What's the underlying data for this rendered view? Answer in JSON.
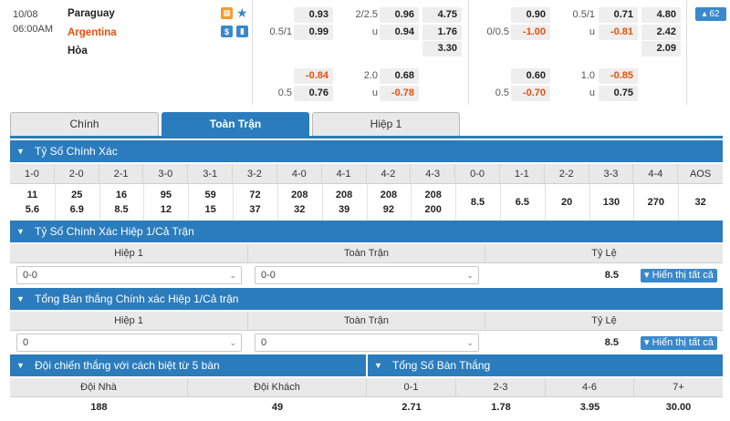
{
  "match": {
    "date": "10/08",
    "time": "06:00AM",
    "home_team": "Paraguay",
    "away_team": "Argentina",
    "draw_label": "Hòa",
    "more_count": "62",
    "ft": {
      "hdp_line": "0.5/1",
      "hdp_home": "0.93",
      "hdp_away": "0.99",
      "ou_line": "2/2.5",
      "ou_u": "u",
      "ou_over": "0.96",
      "ou_under": "0.94",
      "x12_home": "4.75",
      "x12_away": "1.76",
      "x12_draw": "3.30"
    },
    "ht_left": {
      "hdp_home": "-0.84",
      "hdp_line": "0.5",
      "hdp_away": "0.76",
      "ou_line": "2.0",
      "ou_u": "u",
      "ou_over": "0.68",
      "ou_under": "-0.78"
    },
    "ft2": {
      "hdp_home": "0.90",
      "hdp_line": "0/0.5",
      "hdp_away": "-1.00",
      "ou_line": "0.5/1",
      "ou_u": "u",
      "ou_over": "0.71",
      "ou_under": "-0.81",
      "x12_home": "4.80",
      "x12_away": "2.42",
      "x12_draw": "2.09"
    },
    "ht2": {
      "hdp_home": "0.60",
      "hdp_line": "0.5",
      "hdp_away": "-0.70",
      "ou_line": "1.0",
      "ou_u": "u",
      "ou_over": "-0.85",
      "ou_under": "0.75"
    }
  },
  "tabs": [
    "Chính",
    "Toàn Trận",
    "Hiệp 1"
  ],
  "correct_score": {
    "title": "Tỷ Số Chính Xác",
    "headers": [
      "1-0",
      "2-0",
      "2-1",
      "3-0",
      "3-1",
      "3-2",
      "4-0",
      "4-1",
      "4-2",
      "4-3",
      "0-0",
      "1-1",
      "2-2",
      "3-3",
      "4-4",
      "AOS"
    ],
    "row1": [
      "11",
      "25",
      "16",
      "95",
      "59",
      "72",
      "208",
      "208",
      "208",
      "208",
      "8.5",
      "6.5",
      "20",
      "130",
      "270",
      "32"
    ],
    "row2": [
      "5.6",
      "6.9",
      "8.5",
      "12",
      "15",
      "37",
      "32",
      "39",
      "92",
      "200"
    ]
  },
  "htft_score": {
    "title": "Tỷ Số Chính Xác Hiệp 1/Cả Trận",
    "col_ht": "Hiệp 1",
    "col_ft": "Toàn Trận",
    "col_ratio": "Tỷ Lệ",
    "ht_value": "0-0",
    "ft_value": "0-0",
    "ratio": "8.5",
    "show_all": "Hiển thị tất cả"
  },
  "total_goals_htft": {
    "title": "Tổng Bàn thắng Chính xác Hiệp 1/Cả trận",
    "col_ht": "Hiệp 1",
    "col_ft": "Toàn Trận",
    "col_ratio": "Tỷ Lệ",
    "ht_value": "0",
    "ft_value": "0",
    "ratio": "8.5",
    "show_all": "Hiển thị tất cả"
  },
  "winning_margin": {
    "title": "Đội chiến thắng với cách biệt từ 5 bàn",
    "col_home": "Đội Nhà",
    "col_away": "Đội Khách",
    "home": "188",
    "away": "49"
  },
  "total_goals": {
    "title": "Tổng Số Bàn Thắng",
    "headers": [
      "0-1",
      "2-3",
      "4-6",
      "7+"
    ],
    "values": [
      "2.71",
      "1.78",
      "3.95",
      "30.00"
    ]
  },
  "colors": {
    "primary": "#2b7cbd",
    "accent_orange": "#e8500a",
    "header_grey": "#e9e9e9"
  }
}
